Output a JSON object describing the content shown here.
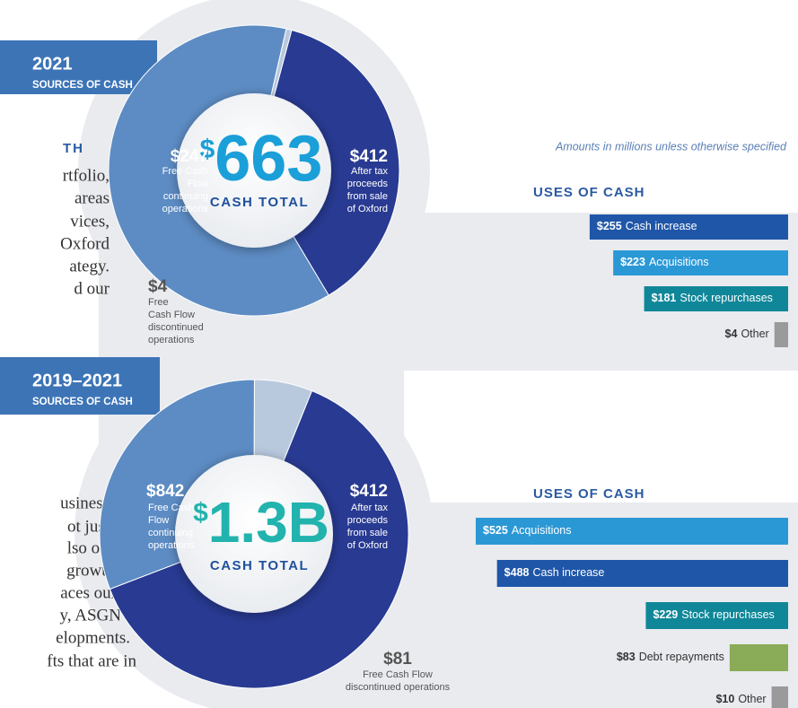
{
  "note": "Amounts in millions unless otherwise specified",
  "side_text": {
    "heading": "TH",
    "block1": [
      "rtfolio,",
      "areas",
      "vices,",
      "Oxford",
      "ategy.",
      "d our"
    ],
    "block2": [
      "usiness",
      "ot just",
      "lso our",
      "growth",
      "aces our",
      "y, ASGN",
      "elopments.",
      "fts that are in"
    ]
  },
  "chart_data": [
    {
      "type": "pie",
      "title": "2021",
      "subtitle": "SOURCES OF CASH",
      "center_prefix": "$",
      "center_value": "663",
      "center_caption": "CASH TOTAL",
      "categories": [
        [
          "Free Cash",
          "Flow",
          "continuing",
          "operations"
        ],
        [
          "After tax",
          "proceeds",
          "from sale",
          "of Oxford"
        ],
        [
          "Free",
          "Cash Flow",
          "discontinued",
          "operations"
        ]
      ],
      "values": [
        247,
        412,
        4
      ],
      "value_labels": [
        "$247",
        "$412",
        "$4"
      ],
      "colors": [
        "#283a92",
        "#5d8cc4",
        "#b9c9dd"
      ]
    },
    {
      "type": "bar",
      "title": "USES OF CASH",
      "categories": [
        "Cash increase",
        "Acquisitions",
        "Stock repurchases",
        "Other"
      ],
      "values": [
        255,
        223,
        181,
        4
      ],
      "value_labels": [
        "$255",
        "$223",
        "$181",
        "$4"
      ],
      "colors": [
        "#1f56a8",
        "#2b98d6",
        "#0f8799",
        "#9a9a9a"
      ]
    },
    {
      "type": "pie",
      "title": "2019–2021",
      "subtitle": "SOURCES OF CASH",
      "center_prefix": "$",
      "center_value": "1.3B",
      "center_caption": "CASH TOTAL",
      "categories": [
        [
          "Free Cash",
          "Flow",
          "continuing",
          "operations"
        ],
        [
          "After tax",
          "proceeds",
          "from sale",
          "of Oxford"
        ],
        [
          "Free Cash Flow",
          "discontinued operations"
        ]
      ],
      "values": [
        842,
        412,
        81
      ],
      "value_labels": [
        "$842",
        "$412",
        "$81"
      ],
      "colors": [
        "#283a92",
        "#5d8cc4",
        "#b9c9dd"
      ]
    },
    {
      "type": "bar",
      "title": "USES OF CASH",
      "categories": [
        "Acquisitions",
        "Cash increase",
        "Stock repurchases",
        "Debt repayments",
        "Other"
      ],
      "values": [
        525,
        488,
        229,
        83,
        10
      ],
      "value_labels": [
        "$525",
        "$488",
        "$229",
        "$83",
        "$10"
      ],
      "colors": [
        "#2b98d6",
        "#1f56a8",
        "#0f8799",
        "#8aab57",
        "#9a9a9a"
      ]
    }
  ]
}
